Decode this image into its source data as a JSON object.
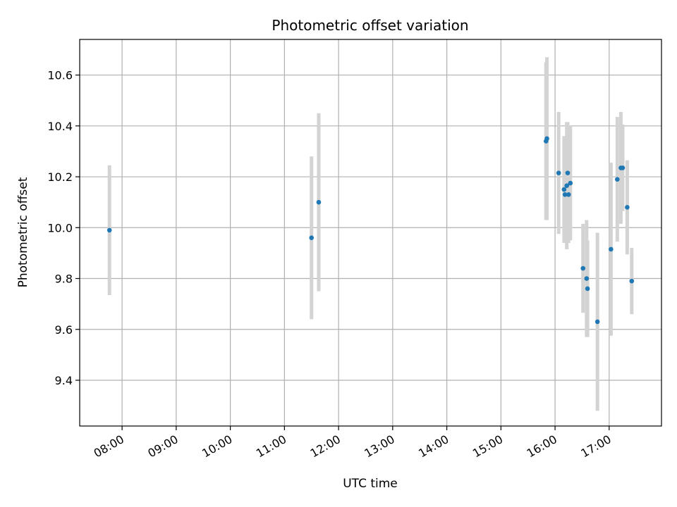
{
  "chart_data": {
    "type": "scatter",
    "title": "Photometric offset variation",
    "xlabel": "UTC time",
    "ylabel": "Photometric offset",
    "x_ticks": [
      "08:00",
      "09:00",
      "10:00",
      "11:00",
      "12:00",
      "13:00",
      "14:00",
      "15:00",
      "16:00",
      "17:00"
    ],
    "y_ticks": [
      9.4,
      9.6,
      9.8,
      10.0,
      10.2,
      10.4,
      10.6
    ],
    "xlim": [
      "07:13",
      "17:58"
    ],
    "ylim": [
      9.22,
      10.74
    ],
    "grid": true,
    "point_color": "#1f77b4",
    "errorbar_color": "#d3d3d3",
    "points": [
      {
        "x": "07:46",
        "y": 9.99,
        "err": 0.255
      },
      {
        "x": "11:30",
        "y": 9.96,
        "err": 0.32
      },
      {
        "x": "11:38",
        "y": 10.1,
        "err": 0.35
      },
      {
        "x": "15:50",
        "y": 10.34,
        "err": 0.31
      },
      {
        "x": "15:51",
        "y": 10.35,
        "err": 0.32
      },
      {
        "x": "16:04",
        "y": 10.215,
        "err": 0.24
      },
      {
        "x": "16:10",
        "y": 10.15,
        "err": 0.21
      },
      {
        "x": "16:11",
        "y": 10.13,
        "err": 0.18
      },
      {
        "x": "16:13",
        "y": 10.165,
        "err": 0.25
      },
      {
        "x": "16:14",
        "y": 10.215,
        "err": 0.2
      },
      {
        "x": "16:15",
        "y": 10.13,
        "err": 0.19
      },
      {
        "x": "16:17",
        "y": 10.175,
        "err": 0.225
      },
      {
        "x": "16:31",
        "y": 9.84,
        "err": 0.175
      },
      {
        "x": "16:35",
        "y": 9.8,
        "err": 0.23
      },
      {
        "x": "16:36",
        "y": 9.76,
        "err": 0.19
      },
      {
        "x": "16:47",
        "y": 9.63,
        "err": 0.35
      },
      {
        "x": "17:02",
        "y": 9.915,
        "err": 0.34
      },
      {
        "x": "17:09",
        "y": 10.19,
        "err": 0.245
      },
      {
        "x": "17:13",
        "y": 10.235,
        "err": 0.22
      },
      {
        "x": "17:15",
        "y": 10.235,
        "err": 0.17
      },
      {
        "x": "17:20",
        "y": 10.08,
        "err": 0.185
      },
      {
        "x": "17:25",
        "y": 9.79,
        "err": 0.13
      }
    ]
  }
}
